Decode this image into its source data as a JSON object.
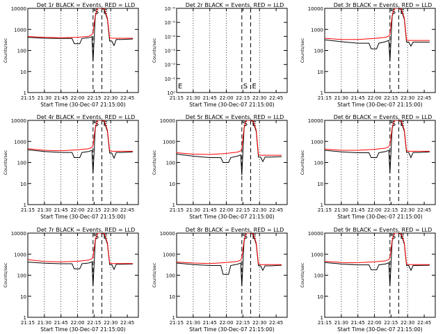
{
  "figure": {
    "layout": "3x3 grid of log-scale time series panels",
    "colors": {
      "events": "#000000",
      "lld": "#ff0000",
      "background": "#ffffff"
    }
  },
  "chart_data": [
    {
      "type": "line",
      "title": "Det 1r BLACK = Events, RED = LLD",
      "xlabel": "Start Time (30-Dec-07 21:15:00)",
      "ylabel": "Counts/sec",
      "x_ticks": [
        "21:15",
        "21:30",
        "21:45",
        "22:00",
        "22:15",
        "22:30",
        "22:45"
      ],
      "y_ticks": [
        "1",
        "10",
        "100",
        "1000",
        "10000"
      ],
      "ylim": [
        1,
        10000
      ],
      "yscale": "log",
      "markers": [
        "S",
        "E"
      ],
      "has_data": true,
      "events_base": 380,
      "lld_base": 420,
      "series": [
        {
          "name": "Events",
          "color": "#000000",
          "x": [
            "21:15",
            "21:30",
            "21:45",
            "21:55",
            "21:57",
            "22:02",
            "22:04",
            "22:10",
            "22:13",
            "22:14",
            "22:16",
            "22:18",
            "22:21",
            "22:24",
            "22:27",
            "22:29",
            "22:31",
            "22:33",
            "22:35",
            "22:40",
            "22:50"
          ],
          "y": [
            420,
            380,
            370,
            370,
            210,
            210,
            370,
            400,
            450,
            30,
            4000,
            10000,
            11000,
            9000,
            3000,
            280,
            280,
            170,
            330,
            330,
            350
          ]
        },
        {
          "name": "LLD",
          "color": "#ff0000",
          "x": [
            "21:15",
            "21:30",
            "21:45",
            "22:00",
            "22:10",
            "22:13",
            "22:14",
            "22:16",
            "22:18",
            "22:21",
            "22:24",
            "22:27",
            "22:29",
            "22:31",
            "22:40",
            "22:50"
          ],
          "y": [
            460,
            420,
            400,
            420,
            470,
            560,
            700,
            4500,
            11000,
            12000,
            10000,
            3500,
            400,
            380,
            380,
            380
          ]
        }
      ]
    },
    {
      "type": "line",
      "title": "Det 2r BLACK = Events, RED = LLD",
      "xlabel": "Start Time (30-Dec-07 21:15:00)",
      "ylabel": "Counts/sec",
      "x_ticks": [
        "21:15",
        "21:30",
        "21:45",
        "22:00",
        "22:15",
        "22:30",
        "22:45"
      ],
      "y_ticks": [
        "10⁰",
        "10⁻¹",
        "10⁻²",
        "10⁻³",
        "10⁻⁴",
        "10⁻⁵",
        "10⁻⁶"
      ],
      "ylim": [
        1,
        1e-06
      ],
      "yscale": "log",
      "markers": [
        "S",
        "E"
      ],
      "has_data": false,
      "series": []
    },
    {
      "type": "line",
      "title": "Det 3r BLACK = Events, RED = LLD",
      "xlabel": "Start Time (30-Dec-07 21:15:00)",
      "ylabel": "Counts/sec",
      "x_ticks": [
        "21:15",
        "21:30",
        "21:45",
        "22:00",
        "22:15",
        "22:30",
        "22:45"
      ],
      "y_ticks": [
        "1",
        "10",
        "100",
        "1000",
        "10000"
      ],
      "ylim": [
        1,
        10000
      ],
      "yscale": "log",
      "markers": [
        "S",
        "E"
      ],
      "has_data": true,
      "series": [
        {
          "name": "Events",
          "color": "#000000",
          "x": [
            "21:15",
            "21:30",
            "21:45",
            "21:55",
            "21:57",
            "22:02",
            "22:04",
            "22:10",
            "22:13",
            "22:14",
            "22:16",
            "22:18",
            "22:21",
            "22:24",
            "22:27",
            "22:29",
            "22:31",
            "22:33",
            "22:35",
            "22:40",
            "22:50"
          ],
          "y": [
            320,
            260,
            220,
            220,
            120,
            120,
            220,
            260,
            300,
            30,
            4000,
            10000,
            11000,
            9000,
            3000,
            250,
            250,
            160,
            250,
            250,
            250
          ]
        },
        {
          "name": "LLD",
          "color": "#ff0000",
          "x": [
            "21:15",
            "21:30",
            "21:45",
            "22:00",
            "22:10",
            "22:13",
            "22:14",
            "22:16",
            "22:18",
            "22:21",
            "22:24",
            "22:27",
            "22:29",
            "22:31",
            "22:40",
            "22:50"
          ],
          "y": [
            380,
            330,
            330,
            370,
            420,
            480,
            600,
            4500,
            11000,
            12000,
            10000,
            3500,
            320,
            300,
            300,
            300
          ]
        }
      ]
    },
    {
      "type": "line",
      "title": "Det 4r BLACK = Events, RED = LLD",
      "xlabel": "Start Time (30-Dec-07 21:15:00)",
      "ylabel": "Counts/sec",
      "x_ticks": [
        "21:15",
        "21:30",
        "21:45",
        "22:00",
        "22:15",
        "22:30",
        "22:45"
      ],
      "y_ticks": [
        "1",
        "10",
        "100",
        "1000",
        "10000"
      ],
      "ylim": [
        1,
        10000
      ],
      "yscale": "log",
      "markers": [
        "S",
        "E"
      ],
      "has_data": true,
      "series": [
        {
          "name": "Events",
          "color": "#000000",
          "x": [
            "21:15",
            "21:30",
            "21:45",
            "21:55",
            "21:57",
            "22:02",
            "22:04",
            "22:10",
            "22:13",
            "22:14",
            "22:16",
            "22:18",
            "22:21",
            "22:24",
            "22:27",
            "22:29",
            "22:31",
            "22:33",
            "22:35",
            "22:40",
            "22:50"
          ],
          "y": [
            400,
            330,
            300,
            300,
            170,
            170,
            300,
            330,
            380,
            30,
            4000,
            10000,
            11000,
            9000,
            3000,
            280,
            280,
            160,
            300,
            300,
            320
          ]
        },
        {
          "name": "LLD",
          "color": "#ff0000",
          "x": [
            "21:15",
            "21:30",
            "21:45",
            "22:00",
            "22:10",
            "22:13",
            "22:14",
            "22:16",
            "22:18",
            "22:21",
            "22:24",
            "22:27",
            "22:29",
            "22:31",
            "22:40",
            "22:50"
          ],
          "y": [
            450,
            380,
            360,
            400,
            450,
            520,
            650,
            4500,
            11000,
            12000,
            10000,
            3500,
            360,
            340,
            340,
            340
          ]
        }
      ]
    },
    {
      "type": "line",
      "title": "Det 5r BLACK = Events, RED = LLD",
      "xlabel": "Start Time (30-Dec-07 21:15:00)",
      "ylabel": "Counts/sec",
      "x_ticks": [
        "21:15",
        "21:30",
        "21:45",
        "22:00",
        "22:15",
        "22:30",
        "22:45"
      ],
      "y_ticks": [
        "1",
        "10",
        "100",
        "1000",
        "10000"
      ],
      "ylim": [
        1,
        10000
      ],
      "yscale": "log",
      "markers": [
        "S",
        "E"
      ],
      "has_data": true,
      "series": [
        {
          "name": "Events",
          "color": "#000000",
          "x": [
            "21:15",
            "21:30",
            "21:45",
            "21:55",
            "21:57",
            "22:02",
            "22:04",
            "22:10",
            "22:13",
            "22:14",
            "22:16",
            "22:18",
            "22:21",
            "22:24",
            "22:27",
            "22:29",
            "22:31",
            "22:33",
            "22:35",
            "22:40",
            "22:50"
          ],
          "y": [
            250,
            200,
            170,
            170,
            100,
            100,
            170,
            200,
            230,
            25,
            4000,
            10000,
            11000,
            9000,
            3000,
            180,
            180,
            110,
            180,
            180,
            190
          ]
        },
        {
          "name": "LLD",
          "color": "#ff0000",
          "x": [
            "21:15",
            "21:30",
            "21:45",
            "22:00",
            "22:10",
            "22:13",
            "22:14",
            "22:16",
            "22:18",
            "22:21",
            "22:24",
            "22:27",
            "22:29",
            "22:31",
            "22:40",
            "22:50"
          ],
          "y": [
            290,
            250,
            240,
            270,
            310,
            360,
            450,
            4500,
            11000,
            12000,
            10000,
            3500,
            230,
            220,
            220,
            220
          ]
        }
      ]
    },
    {
      "type": "line",
      "title": "Det 6r BLACK = Events, RED = LLD",
      "xlabel": "Start Time (30-Dec-07 21:15:00)",
      "ylabel": "Counts/sec",
      "x_ticks": [
        "21:15",
        "21:30",
        "21:45",
        "22:00",
        "22:15",
        "22:30",
        "22:45"
      ],
      "y_ticks": [
        "1",
        "10",
        "100",
        "1000",
        "10000"
      ],
      "ylim": [
        1,
        10000
      ],
      "yscale": "log",
      "markers": [
        "S",
        "E"
      ],
      "has_data": true,
      "series": [
        {
          "name": "Events",
          "color": "#000000",
          "x": [
            "21:15",
            "21:30",
            "21:45",
            "21:55",
            "21:57",
            "22:02",
            "22:04",
            "22:10",
            "22:13",
            "22:14",
            "22:16",
            "22:18",
            "22:21",
            "22:24",
            "22:27",
            "22:29",
            "22:31",
            "22:33",
            "22:35",
            "22:40",
            "22:50"
          ],
          "y": [
            380,
            320,
            290,
            290,
            170,
            170,
            290,
            330,
            380,
            30,
            4000,
            10000,
            11000,
            9000,
            3000,
            300,
            300,
            170,
            300,
            300,
            320
          ]
        },
        {
          "name": "LLD",
          "color": "#ff0000",
          "x": [
            "21:15",
            "21:30",
            "21:45",
            "22:00",
            "22:10",
            "22:13",
            "22:14",
            "22:16",
            "22:18",
            "22:21",
            "22:24",
            "22:27",
            "22:29",
            "22:31",
            "22:40",
            "22:50"
          ],
          "y": [
            430,
            380,
            380,
            420,
            480,
            560,
            700,
            4500,
            11000,
            12000,
            10000,
            3500,
            360,
            340,
            340,
            340
          ]
        }
      ]
    },
    {
      "type": "line",
      "title": "Det 7r BLACK = Events, RED = LLD",
      "xlabel": "Start Time (30-Dec-07 21:15:00)",
      "ylabel": "Counts/sec",
      "x_ticks": [
        "21:15",
        "21:30",
        "21:45",
        "22:00",
        "22:15",
        "22:30",
        "22:45"
      ],
      "y_ticks": [
        "1",
        "10",
        "100",
        "1000",
        "10000"
      ],
      "ylim": [
        1,
        10000
      ],
      "yscale": "log",
      "markers": [
        "S",
        "E"
      ],
      "has_data": true,
      "series": [
        {
          "name": "Events",
          "color": "#000000",
          "x": [
            "21:15",
            "21:30",
            "21:45",
            "21:55",
            "21:57",
            "22:02",
            "22:04",
            "22:10",
            "22:13",
            "22:14",
            "22:16",
            "22:18",
            "22:21",
            "22:24",
            "22:27",
            "22:29",
            "22:31",
            "22:33",
            "22:35",
            "22:40",
            "22:50"
          ],
          "y": [
            420,
            370,
            350,
            350,
            200,
            200,
            350,
            380,
            430,
            30,
            4000,
            10000,
            11000,
            9000,
            3000,
            320,
            320,
            190,
            330,
            330,
            340
          ]
        },
        {
          "name": "LLD",
          "color": "#ff0000",
          "x": [
            "21:15",
            "21:30",
            "21:45",
            "22:00",
            "22:10",
            "22:13",
            "22:14",
            "22:16",
            "22:18",
            "22:21",
            "22:24",
            "22:27",
            "22:29",
            "22:31",
            "22:40",
            "22:50"
          ],
          "y": [
            550,
            450,
            430,
            460,
            520,
            600,
            750,
            4500,
            11000,
            12000,
            10000,
            3500,
            380,
            360,
            360,
            360
          ]
        }
      ]
    },
    {
      "type": "line",
      "title": "Det 8r BLACK = Events, RED = LLD",
      "xlabel": "Start Time (30-Dec-07 21:15:00)",
      "ylabel": "Counts/sec",
      "x_ticks": [
        "21:15",
        "21:30",
        "21:45",
        "22:00",
        "22:15",
        "22:30",
        "22:45"
      ],
      "y_ticks": [
        "1",
        "10",
        "100",
        "1000",
        "10000"
      ],
      "ylim": [
        1,
        10000
      ],
      "yscale": "log",
      "markers": [
        "S",
        "E"
      ],
      "has_data": true,
      "series": [
        {
          "name": "Events",
          "color": "#000000",
          "x": [
            "21:15",
            "21:30",
            "21:45",
            "21:55",
            "21:57",
            "22:02",
            "22:04",
            "22:10",
            "22:13",
            "22:14",
            "22:16",
            "22:18",
            "22:21",
            "22:24",
            "22:27",
            "22:29",
            "22:31",
            "22:33",
            "22:35",
            "22:40",
            "22:50"
          ],
          "y": [
            380,
            320,
            290,
            290,
            110,
            110,
            290,
            330,
            380,
            30,
            4000,
            10000,
            11000,
            9000,
            3000,
            280,
            280,
            170,
            280,
            280,
            300
          ]
        },
        {
          "name": "LLD",
          "color": "#ff0000",
          "x": [
            "21:15",
            "21:30",
            "21:45",
            "22:00",
            "22:10",
            "22:13",
            "22:14",
            "22:16",
            "22:18",
            "22:21",
            "22:24",
            "22:27",
            "22:29",
            "22:31",
            "22:40",
            "22:50"
          ],
          "y": [
            420,
            380,
            360,
            400,
            450,
            520,
            650,
            4500,
            11000,
            12000,
            10000,
            3500,
            340,
            320,
            320,
            320
          ]
        }
      ]
    },
    {
      "type": "line",
      "title": "Det 9r BLACK = Events, RED = LLD",
      "xlabel": "Start Time (30-Dec-07 21:15:00)",
      "ylabel": "Counts/sec",
      "x_ticks": [
        "21:15",
        "21:30",
        "21:45",
        "22:00",
        "22:15",
        "22:30",
        "22:45"
      ],
      "y_ticks": [
        "1",
        "10",
        "100",
        "1000",
        "10000"
      ],
      "ylim": [
        1,
        10000
      ],
      "yscale": "log",
      "markers": [
        "S",
        "E"
      ],
      "has_data": true,
      "series": [
        {
          "name": "Events",
          "color": "#000000",
          "x": [
            "21:15",
            "21:30",
            "21:45",
            "21:55",
            "21:57",
            "22:02",
            "22:04",
            "22:10",
            "22:13",
            "22:14",
            "22:16",
            "22:18",
            "22:21",
            "22:24",
            "22:27",
            "22:29",
            "22:31",
            "22:33",
            "22:35",
            "22:40",
            "22:50"
          ],
          "y": [
            400,
            340,
            310,
            310,
            180,
            180,
            310,
            340,
            390,
            30,
            4000,
            10000,
            11000,
            9000,
            3000,
            290,
            290,
            170,
            290,
            290,
            300
          ]
        },
        {
          "name": "LLD",
          "color": "#ff0000",
          "x": [
            "21:15",
            "21:30",
            "21:45",
            "22:00",
            "22:10",
            "22:13",
            "22:14",
            "22:16",
            "22:18",
            "22:21",
            "22:24",
            "22:27",
            "22:29",
            "22:31",
            "22:40",
            "22:50"
          ],
          "y": [
            460,
            400,
            390,
            430,
            480,
            560,
            700,
            4500,
            11000,
            12000,
            10000,
            3500,
            340,
            320,
            320,
            320
          ]
        }
      ]
    }
  ]
}
